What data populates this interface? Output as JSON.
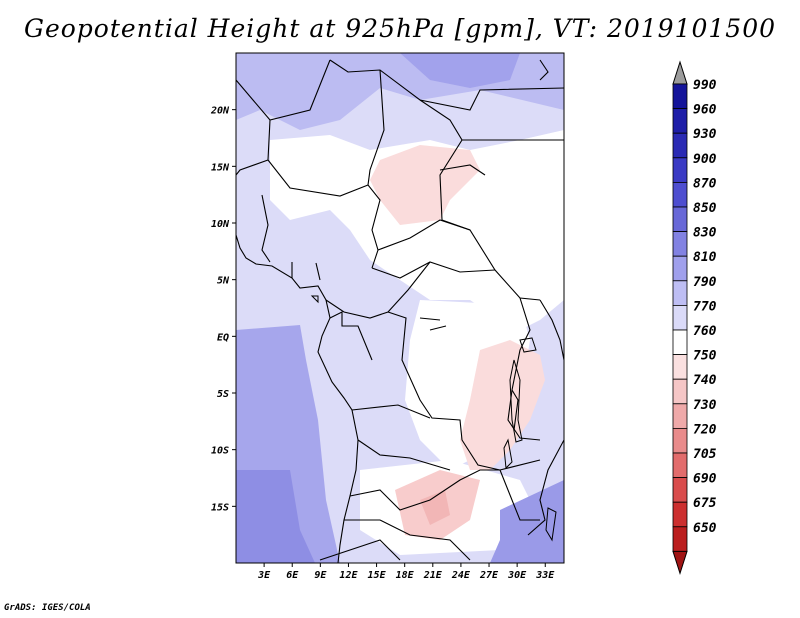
{
  "header": {
    "title": "Geopotential Height at 925hPa [gpm], VT: 2019101500"
  },
  "footer": {
    "credit": "GrADS: IGES/COLA"
  },
  "map": {
    "variable": "Geopotential Height",
    "level": "925hPa",
    "units": "gpm",
    "valid_time": "2019101500",
    "lon_range": [
      0,
      35
    ],
    "lat_range": [
      -20,
      25
    ],
    "lon_ticks": [
      "3E",
      "6E",
      "9E",
      "12E",
      "15E",
      "18E",
      "21E",
      "24E",
      "27E",
      "30E",
      "33E"
    ],
    "lat_ticks": [
      "20N",
      "15N",
      "10N",
      "5N",
      "EQ",
      "5S",
      "10S",
      "15S"
    ]
  },
  "colorbar": {
    "labels": [
      "990",
      "960",
      "930",
      "900",
      "870",
      "850",
      "830",
      "810",
      "790",
      "770",
      "760",
      "750",
      "740",
      "730",
      "720",
      "705",
      "690",
      "675",
      "650"
    ],
    "colors": [
      "#9c9c9c",
      "#14149a",
      "#1e1ea8",
      "#2a2ab4",
      "#3a3ac4",
      "#4e4ed0",
      "#6868d8",
      "#8282e2",
      "#a0a0ec",
      "#bebef4",
      "#dadaf8",
      "#ffffff",
      "#fae0e0",
      "#f5c6c6",
      "#efa9a9",
      "#e98b8b",
      "#e26c6c",
      "#d94c4c",
      "#cc2f2f",
      "#bb1e1e",
      "#a01414"
    ]
  }
}
